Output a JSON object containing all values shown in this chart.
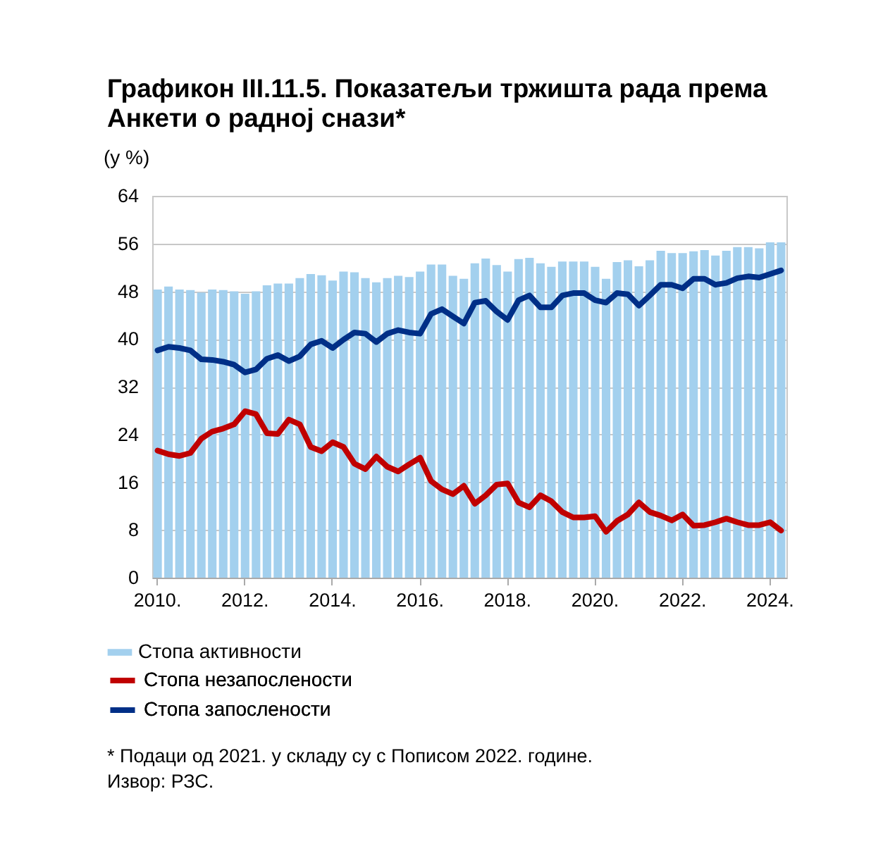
{
  "chart_data": {
    "type": "bar",
    "title": "Графикон III.11.5. Показатељи тржишта рада према Анкети о радној снази*",
    "ylabel": "(у %)",
    "categories": [
      "2010.",
      null,
      null,
      null,
      null,
      null,
      null,
      null,
      "2012.",
      null,
      null,
      null,
      null,
      null,
      null,
      null,
      "2014.",
      null,
      null,
      null,
      null,
      null,
      null,
      null,
      "2016.",
      null,
      null,
      null,
      null,
      null,
      null,
      null,
      "2018.",
      null,
      null,
      null,
      null,
      null,
      null,
      null,
      "2020.",
      null,
      null,
      null,
      null,
      null,
      null,
      null,
      "2022.",
      null,
      null,
      null,
      null,
      null,
      null,
      null,
      "2024.",
      null
    ],
    "series": [
      {
        "name": "Стопа активности",
        "type": "bar",
        "color": "#a3d0ee",
        "values": [
          48.3,
          48.8,
          48.3,
          48.2,
          47.8,
          48.3,
          48.2,
          48.0,
          47.6,
          48.0,
          49.0,
          49.3,
          49.3,
          50.2,
          50.9,
          50.7,
          49.8,
          51.3,
          51.2,
          50.2,
          49.5,
          50.2,
          50.6,
          50.4,
          51.3,
          52.5,
          52.5,
          50.6,
          50.1,
          52.7,
          53.5,
          52.4,
          51.3,
          53.4,
          53.6,
          52.7,
          52.1,
          53.0,
          53.0,
          53.0,
          52.1,
          50.1,
          52.9,
          53.2,
          52.2,
          53.2,
          54.8,
          54.4,
          54.4,
          54.7,
          54.9,
          54.0,
          54.8,
          55.4,
          55.4,
          55.2,
          56.2,
          56.2
        ]
      },
      {
        "name": "Стопа незапослености",
        "type": "line",
        "color": "#c00000",
        "values": [
          21.3,
          20.7,
          20.4,
          20.9,
          23.3,
          24.5,
          25.0,
          25.7,
          27.9,
          27.4,
          24.2,
          24.1,
          26.5,
          25.7,
          21.9,
          21.2,
          22.7,
          21.9,
          19.1,
          18.2,
          20.3,
          18.6,
          17.8,
          19.0,
          20.1,
          16.2,
          14.8,
          14.0,
          15.4,
          12.4,
          13.8,
          15.6,
          15.8,
          12.6,
          11.8,
          13.8,
          12.8,
          11.0,
          10.1,
          10.1,
          10.3,
          7.7,
          9.5,
          10.6,
          12.6,
          11.0,
          10.4,
          9.6,
          10.6,
          8.7,
          8.8,
          9.3,
          9.9,
          9.3,
          8.8,
          8.8,
          9.3,
          7.9
        ]
      },
      {
        "name": "Стопа запослености",
        "type": "line",
        "color": "#002f87",
        "values": [
          38.1,
          38.7,
          38.5,
          38.1,
          36.6,
          36.5,
          36.2,
          35.7,
          34.4,
          34.9,
          36.7,
          37.3,
          36.3,
          37.1,
          39.1,
          39.7,
          38.5,
          39.9,
          41.1,
          40.9,
          39.5,
          40.9,
          41.5,
          41.1,
          40.9,
          44.2,
          45.0,
          43.8,
          42.6,
          46.1,
          46.4,
          44.6,
          43.2,
          46.5,
          47.3,
          45.3,
          45.3,
          47.3,
          47.7,
          47.7,
          46.5,
          46.1,
          47.7,
          47.5,
          45.6,
          47.3,
          49.1,
          49.1,
          48.5,
          50.1,
          50.1,
          49.1,
          49.4,
          50.2,
          50.5,
          50.3,
          50.9,
          51.5
        ]
      }
    ],
    "ylim": [
      0,
      64
    ],
    "yticks": [
      0,
      8,
      16,
      24,
      32,
      40,
      48,
      56,
      64
    ],
    "grid": "y",
    "legend": "bottom",
    "line_style": "solid",
    "annotations": [
      "* Подаци од 2021. у складу су с Пописом 2022. године.",
      "Извор: РЗС."
    ]
  }
}
